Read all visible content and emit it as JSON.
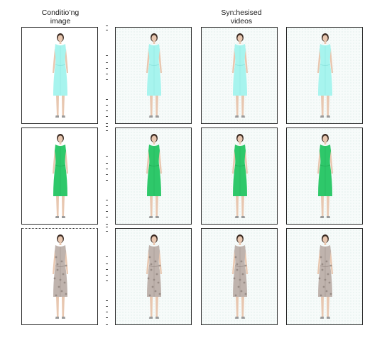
{
  "headings": {
    "conditioning_line1": "Conditio’ng",
    "conditioning_line2": "image",
    "synthesised_line1": "Syn:hesised",
    "synthesised_line2": "videos"
  },
  "rows": [
    {
      "dress_color": "#a7f4ee",
      "dress_shade": "#7fdcd6",
      "pattern": "plain"
    },
    {
      "dress_color": "#2ec86a",
      "dress_shade": "#1fa653",
      "pattern": "plain"
    },
    {
      "dress_color": "#bfb3ad",
      "dress_shade": "#8f827c",
      "pattern": "floral"
    }
  ],
  "colors": {
    "skin": "#e8c7b0",
    "hair": "#3a2a22",
    "shoe": "#9a9a9a",
    "border": "#2a2a2a"
  }
}
